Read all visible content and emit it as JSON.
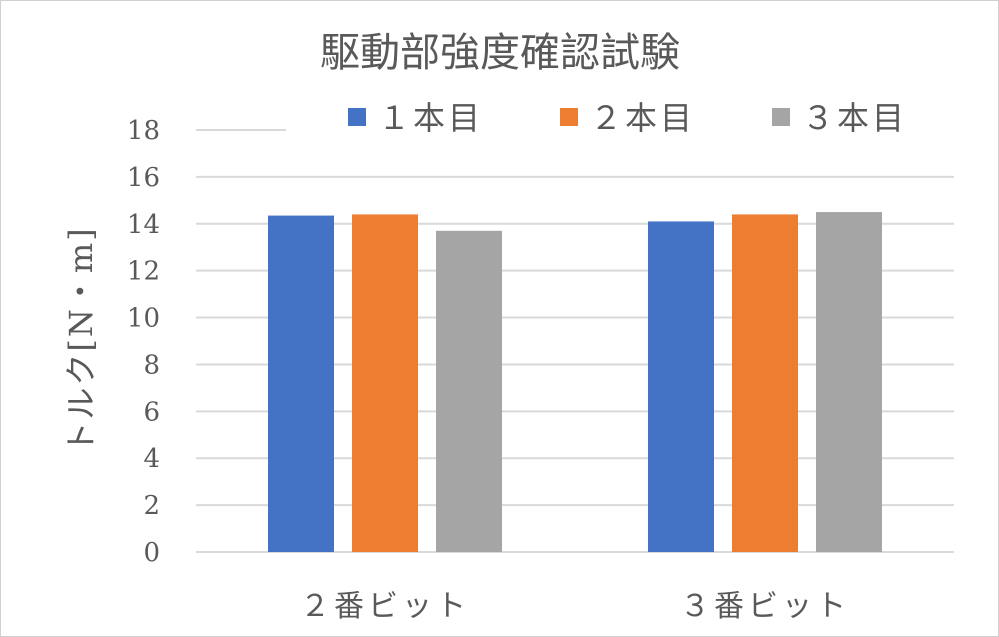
{
  "chart_data": {
    "type": "bar",
    "title": "駆動部強度確認試験",
    "ylabel": "トルク[N・m]",
    "xlabel": "",
    "categories": [
      "２番ビット",
      "３番ビット"
    ],
    "series": [
      {
        "name": "１本目",
        "color": "#4472c4",
        "values": [
          14.35,
          14.1
        ]
      },
      {
        "name": "２本目",
        "color": "#ed7d31",
        "values": [
          14.4,
          14.4
        ]
      },
      {
        "name": "３本目",
        "color": "#a5a5a5",
        "values": [
          13.7,
          14.5
        ]
      }
    ],
    "ylim": [
      0,
      18
    ],
    "yticks": [
      "0",
      "2",
      "4",
      "6",
      "8",
      "10",
      "12",
      "14",
      "16",
      "18"
    ],
    "grid": true,
    "legend": "top"
  }
}
